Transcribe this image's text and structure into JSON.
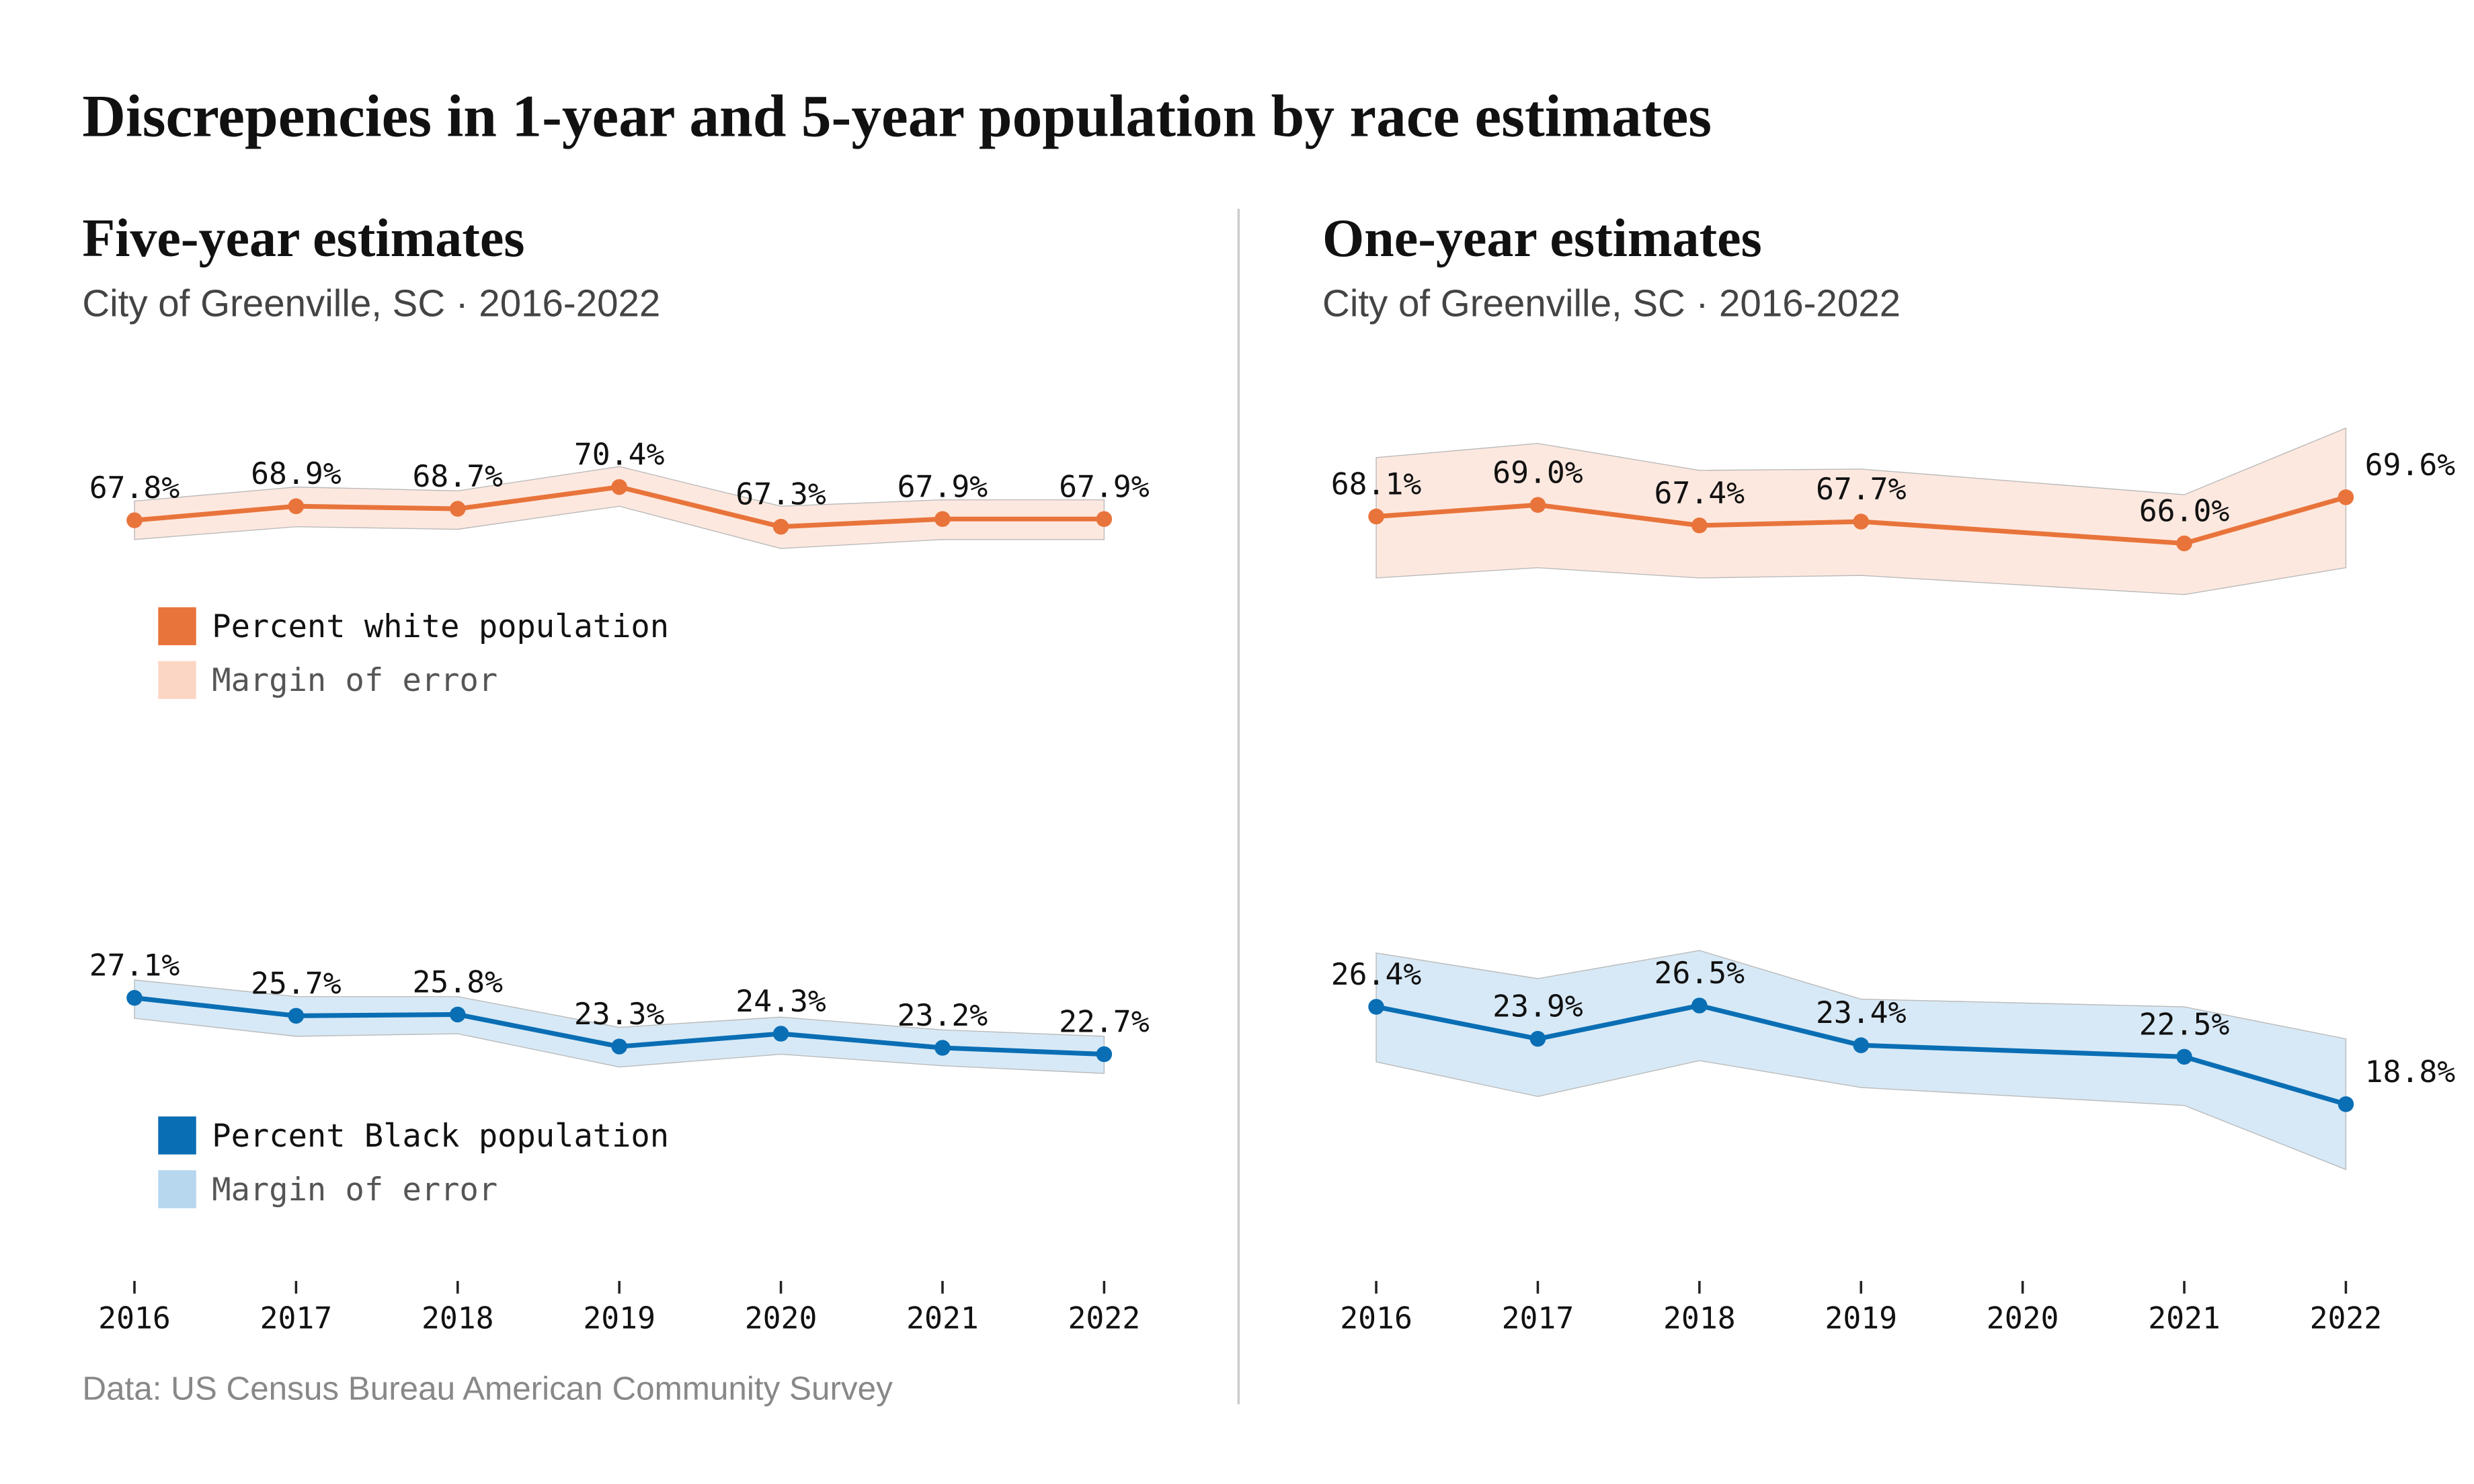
{
  "title": "Discrepencies in 1-year and 5-year population by race estimates",
  "source": "Data: US Census Bureau American Community Survey",
  "chart_data": [
    {
      "type": "line",
      "title": "Five-year estimates",
      "subtitle": "City of Greenville, SC  ·  2016-2022",
      "x": [
        2016,
        2017,
        2018,
        2019,
        2020,
        2021,
        2022
      ],
      "xlim": [
        2016,
        2022
      ],
      "xticks": [
        2016,
        2017,
        2018,
        2019,
        2020,
        2021,
        2022
      ],
      "series": [
        {
          "name": "Percent white population",
          "band_name": "Margin of error",
          "color": "#e8743b",
          "band_color": "#fcd6c4",
          "ylim": [
            50,
            80
          ],
          "values": [
            67.8,
            68.9,
            68.7,
            70.4,
            67.3,
            67.9,
            67.9
          ],
          "value_labels": [
            "67.8%",
            "68.9%",
            "68.7%",
            "70.4%",
            "67.3%",
            "67.9%",
            "67.9%"
          ],
          "upper": [
            69.3,
            70.4,
            70.1,
            72.0,
            68.9,
            69.4,
            69.4
          ],
          "lower": [
            66.3,
            67.3,
            67.1,
            68.9,
            65.6,
            66.3,
            66.3
          ]
        },
        {
          "name": "Percent Black population",
          "band_name": "Margin of error",
          "color": "#0a6eb4",
          "band_color": "#b6d7ee",
          "ylim": [
            10,
            40
          ],
          "values": [
            27.1,
            25.7,
            25.8,
            23.3,
            24.3,
            23.2,
            22.7
          ],
          "value_labels": [
            "27.1%",
            "25.7%",
            "25.8%",
            "23.3%",
            "24.3%",
            "23.2%",
            "22.7%"
          ],
          "upper": [
            28.5,
            27.2,
            27.2,
            24.8,
            25.6,
            24.6,
            24.1
          ],
          "lower": [
            25.5,
            24.1,
            24.3,
            21.7,
            22.7,
            21.8,
            21.2
          ]
        }
      ]
    },
    {
      "type": "line",
      "title": "One-year estimates",
      "subtitle": "City of Greenville, SC  ·  2016-2022",
      "x": [
        2016,
        2017,
        2018,
        2019,
        2021,
        2022
      ],
      "xlim": [
        2016,
        2022
      ],
      "xticks": [
        2016,
        2017,
        2018,
        2019,
        2020,
        2021,
        2022
      ],
      "series": [
        {
          "color": "#e8743b",
          "band_color": "#fcd6c4",
          "ylim": [
            50,
            80
          ],
          "values": [
            68.1,
            69.0,
            67.4,
            67.7,
            66.0,
            69.6
          ],
          "value_labels": [
            "68.1%",
            "69.0%",
            "67.4%",
            "67.7%",
            "66.0%",
            "69.6%"
          ],
          "upper": [
            72.7,
            73.8,
            71.7,
            71.8,
            69.8,
            75.0
          ],
          "lower": [
            63.3,
            64.1,
            63.3,
            63.5,
            62.0,
            64.1
          ]
        },
        {
          "color": "#0a6eb4",
          "band_color": "#b6d7ee",
          "ylim": [
            10,
            40
          ],
          "values": [
            26.4,
            23.9,
            26.5,
            23.4,
            22.5,
            18.8
          ],
          "value_labels": [
            "26.4%",
            "23.9%",
            "26.5%",
            "23.4%",
            "22.5%",
            "18.8%"
          ],
          "upper": [
            30.6,
            28.6,
            30.8,
            27.0,
            26.4,
            23.9
          ],
          "lower": [
            22.1,
            19.4,
            22.2,
            20.1,
            18.7,
            13.7
          ]
        }
      ]
    }
  ]
}
